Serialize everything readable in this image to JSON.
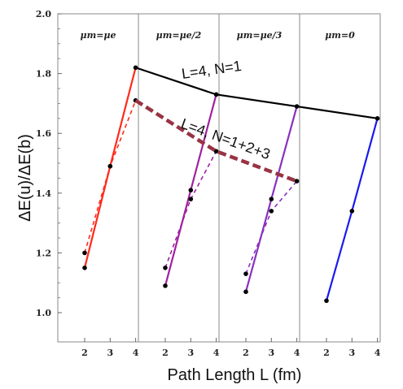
{
  "chart_data": {
    "type": "line",
    "xlabel": "Path Length L (fm)",
    "ylabel": "ΔE(u)/ΔE(b)",
    "ylim": [
      1.0,
      2.0
    ],
    "yticks": [
      "1.0",
      "1.2",
      "1.4",
      "1.6",
      "1.8",
      "2.0"
    ],
    "ytick_values": [
      1.0,
      1.2,
      1.4,
      1.6,
      1.8,
      2.0
    ],
    "xticks_per_panel": [
      "2",
      "3",
      "4"
    ],
    "grid": false,
    "panels": [
      {
        "label": "μm=μe",
        "color": "#ff2a1a",
        "solid": [
          [
            2,
            1.15
          ],
          [
            3,
            1.49
          ],
          [
            4,
            1.82
          ]
        ],
        "dashed": [
          [
            2,
            1.2
          ],
          [
            3,
            1.49
          ],
          [
            4,
            1.71
          ]
        ]
      },
      {
        "label": "μm=μe/2",
        "color": "#a020a0",
        "solid": [
          [
            2,
            1.09
          ],
          [
            3,
            1.41
          ],
          [
            4,
            1.73
          ]
        ],
        "dashed": [
          [
            2,
            1.15
          ],
          [
            3,
            1.38
          ],
          [
            4,
            1.54
          ]
        ]
      },
      {
        "label": "μm=μe/3",
        "color": "#8a30c0",
        "solid": [
          [
            2,
            1.07
          ],
          [
            3,
            1.38
          ],
          [
            4,
            1.69
          ]
        ],
        "dashed": [
          [
            2,
            1.13
          ],
          [
            3,
            1.34
          ],
          [
            4,
            1.44
          ]
        ]
      },
      {
        "label": "μm=0",
        "color": "#1a1aee",
        "solid": [
          [
            2,
            1.04
          ],
          [
            3,
            1.34
          ],
          [
            4,
            1.65
          ]
        ],
        "dashed": []
      }
    ],
    "overlay_series": [
      {
        "name": "L=4, N=1",
        "color": "#000000",
        "style": "solid",
        "points": [
          [
            1,
            1.82
          ],
          [
            2,
            1.73
          ],
          [
            3,
            1.69
          ],
          [
            4,
            1.65
          ]
        ]
      },
      {
        "name": "L=4, N=1+2+3",
        "color": "#993344",
        "style": "dashed",
        "points": [
          [
            1,
            1.71
          ],
          [
            2,
            1.54
          ],
          [
            3,
            1.44
          ]
        ]
      }
    ]
  }
}
